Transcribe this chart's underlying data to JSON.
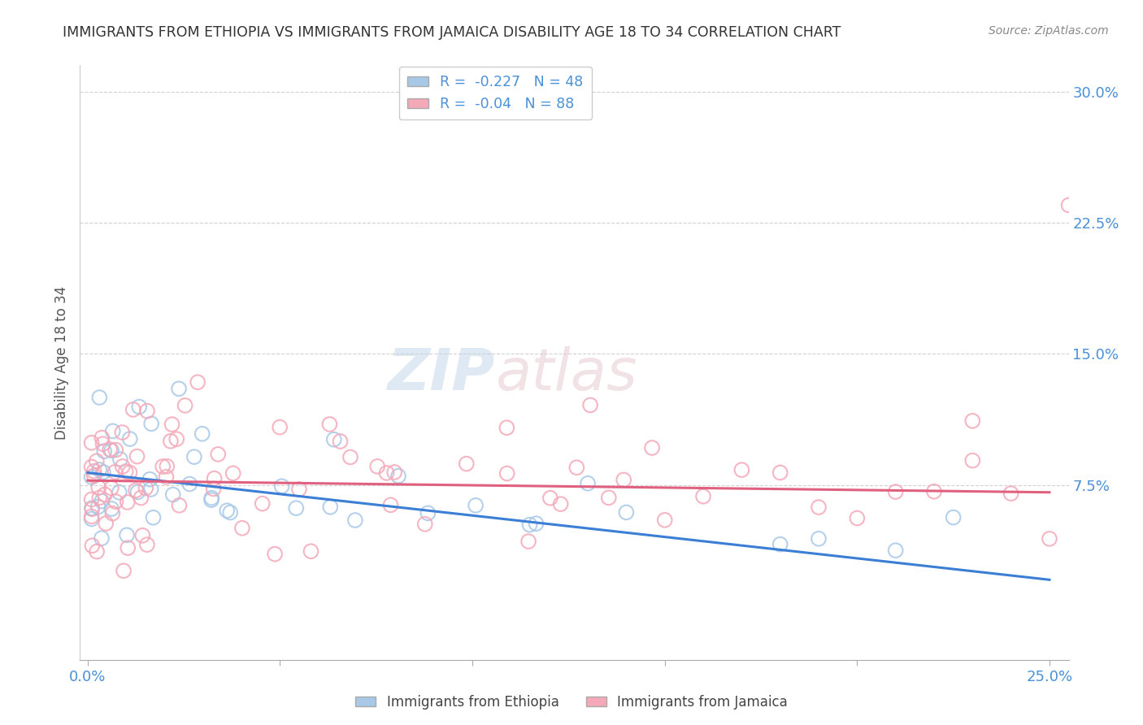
{
  "title": "IMMIGRANTS FROM ETHIOPIA VS IMMIGRANTS FROM JAMAICA DISABILITY AGE 18 TO 34 CORRELATION CHART",
  "source": "Source: ZipAtlas.com",
  "ylabel": "Disability Age 18 to 34",
  "xlim": [
    -0.002,
    0.255
  ],
  "ylim": [
    -0.025,
    0.315
  ],
  "yticks": [
    0.075,
    0.15,
    0.225,
    0.3
  ],
  "ytick_labels": [
    "7.5%",
    "15.0%",
    "22.5%",
    "30.0%"
  ],
  "xticks": [
    0.0,
    0.05,
    0.1,
    0.15,
    0.2,
    0.25
  ],
  "xtick_labels": [
    "0.0%",
    "",
    "",
    "",
    "",
    "25.0%"
  ],
  "ethiopia_R": -0.227,
  "ethiopia_N": 48,
  "jamaica_R": -0.04,
  "jamaica_N": 88,
  "ethiopia_color": "#a8c8e8",
  "jamaica_color": "#f4a8b8",
  "ethiopia_line_color": "#3a7fd5",
  "jamaica_line_color": "#e06080",
  "background_color": "#ffffff",
  "grid_color": "#cccccc",
  "title_color": "#333333",
  "axis_label_color": "#555555",
  "tick_color": "#4a90d9",
  "watermark_color_zip": "#c8d8e8",
  "watermark_color_atlas": "#d8c8d0",
  "legend_entries": [
    "Immigrants from Ethiopia",
    "Immigrants from Jamaica"
  ]
}
